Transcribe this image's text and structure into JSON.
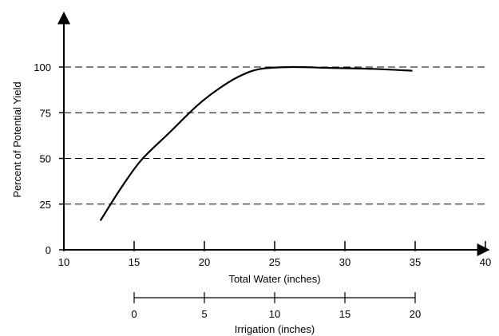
{
  "chart_data": {
    "type": "line",
    "title": "",
    "xlabel": "Total Water (inches)",
    "ylabel": "Percent of Potential Yield",
    "xlim": [
      10,
      40
    ],
    "ylim": [
      0,
      100
    ],
    "x_ticks": [
      "10",
      "15",
      "20",
      "25",
      "30",
      "35",
      "40"
    ],
    "y_ticks": [
      "0",
      "25",
      "50",
      "75",
      "100"
    ],
    "grid": "horizontal dashed at 25, 50, 75, 100",
    "series": [
      {
        "x": [
          12.6,
          14.0,
          15.5,
          17.5,
          19.5,
          21.0,
          22.5,
          24.0,
          26.3,
          29.0,
          32.0,
          34.8
        ],
        "y": [
          16,
          33,
          49,
          64,
          79,
          88,
          95,
          99,
          100,
          99.5,
          99,
          98
        ]
      }
    ],
    "secondary_axis": {
      "label": "Irrigation (inches)",
      "ticks": [
        "0",
        "5",
        "10",
        "15",
        "20"
      ],
      "total_water_at_zero": 15
    }
  }
}
